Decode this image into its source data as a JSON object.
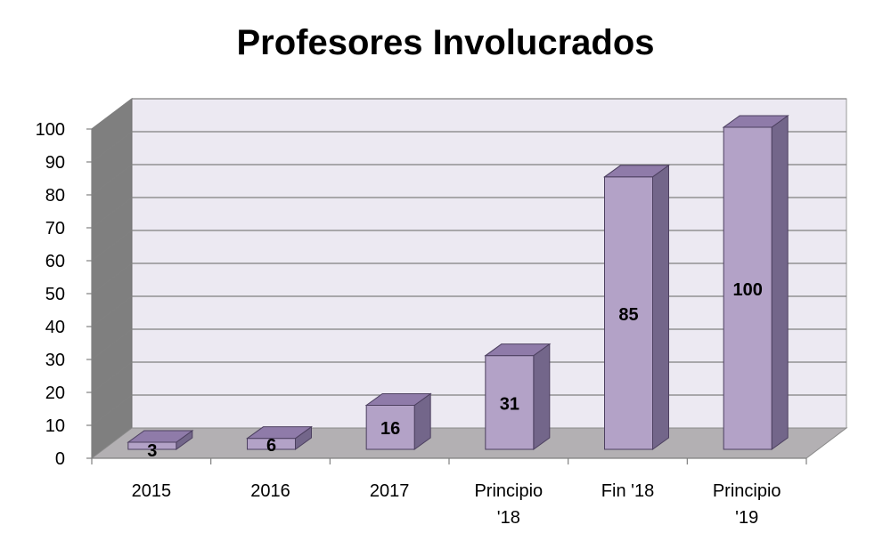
{
  "chart_data": {
    "type": "bar",
    "title": "Profesores Involucrados",
    "categories": [
      [
        "2015"
      ],
      [
        "2016"
      ],
      [
        "2017"
      ],
      [
        "Principio",
        "'18"
      ],
      [
        "Fin '18"
      ],
      [
        "Principio",
        "'19"
      ]
    ],
    "values": [
      3,
      6,
      16,
      31,
      85,
      100
    ],
    "value_labels": [
      "3",
      "6",
      "16",
      "31",
      "85",
      "100"
    ],
    "ylim": [
      0,
      100
    ],
    "yticks": [
      "0",
      "10",
      "20",
      "30",
      "40",
      "50",
      "60",
      "70",
      "80",
      "90",
      "100"
    ],
    "grid": true,
    "legend": "none",
    "colors": {
      "bar_front": "#b3a2c7",
      "bar_top": "#8f7ba9",
      "bar_side": "#73668a",
      "wall": "#ece9f2",
      "side_wall": "#7f7f7f",
      "floor": "#b3b0b3",
      "gridline": "#808080"
    }
  }
}
